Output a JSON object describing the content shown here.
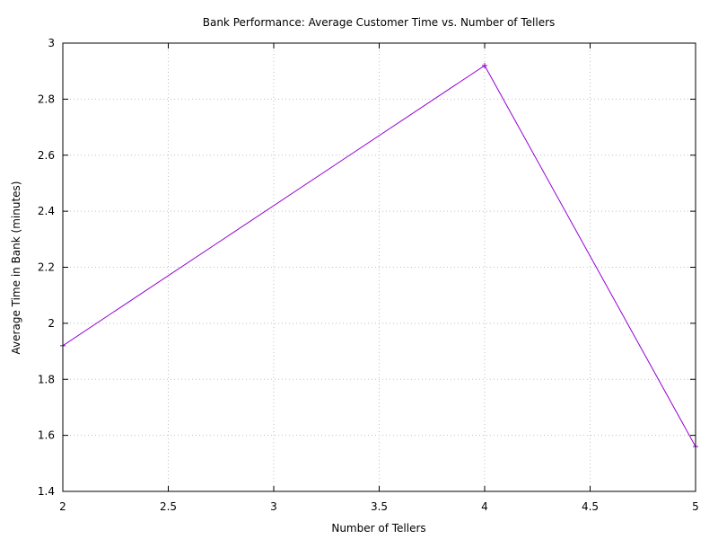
{
  "chart_data": {
    "type": "line",
    "title": "Bank Performance: Average Customer Time vs. Number of Tellers",
    "xlabel": "Number of Tellers",
    "ylabel": "Average Time in Bank (minutes)",
    "xlim": [
      2,
      5
    ],
    "ylim": [
      1.4,
      3
    ],
    "x_ticks": [
      "2",
      "2.5",
      "3",
      "3.5",
      "4",
      "4.5",
      "5"
    ],
    "y_ticks": [
      "1.4",
      "1.6",
      "1.8",
      "2",
      "2.2",
      "2.4",
      "2.6",
      "2.8",
      "3"
    ],
    "grid": true,
    "series": [
      {
        "color": "#9400d3",
        "x": [
          2,
          4,
          5
        ],
        "y": [
          1.92,
          2.92,
          1.56
        ]
      }
    ]
  }
}
